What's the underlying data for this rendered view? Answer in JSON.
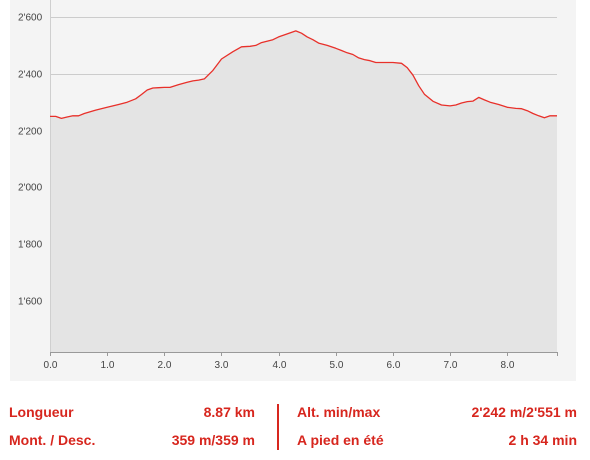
{
  "colors": {
    "line": "#e8302a",
    "fill": "#e4e4e4",
    "panel": "#f4f4f4",
    "grid": "#cccccc",
    "text_red": "#d7261e",
    "axis_text": "#444444"
  },
  "chart_data": {
    "type": "area",
    "xlabel": "",
    "ylabel": "",
    "xlim": [
      0,
      8.87
    ],
    "ylim": [
      1420,
      2660
    ],
    "x_ticks": [
      "0.0",
      "1.0",
      "2.0",
      "3.0",
      "4.0",
      "5.0",
      "6.0",
      "7.0",
      "8.0"
    ],
    "y_ticks": [
      "1'600",
      "1'800",
      "2'000",
      "2'200",
      "2'400",
      "2'600"
    ],
    "grid": true,
    "series": [
      {
        "points": [
          [
            0.0,
            2250
          ],
          [
            0.1,
            2250
          ],
          [
            0.2,
            2243
          ],
          [
            0.3,
            2248
          ],
          [
            0.4,
            2252
          ],
          [
            0.5,
            2252
          ],
          [
            0.6,
            2260
          ],
          [
            0.8,
            2272
          ],
          [
            1.0,
            2282
          ],
          [
            1.2,
            2292
          ],
          [
            1.35,
            2300
          ],
          [
            1.5,
            2312
          ],
          [
            1.6,
            2327
          ],
          [
            1.7,
            2343
          ],
          [
            1.8,
            2350
          ],
          [
            1.9,
            2351
          ],
          [
            2.0,
            2352
          ],
          [
            2.1,
            2352
          ],
          [
            2.25,
            2362
          ],
          [
            2.4,
            2370
          ],
          [
            2.5,
            2375
          ],
          [
            2.6,
            2378
          ],
          [
            2.7,
            2382
          ],
          [
            2.85,
            2412
          ],
          [
            3.0,
            2452
          ],
          [
            3.2,
            2478
          ],
          [
            3.35,
            2495
          ],
          [
            3.5,
            2497
          ],
          [
            3.6,
            2500
          ],
          [
            3.7,
            2510
          ],
          [
            3.9,
            2520
          ],
          [
            4.0,
            2530
          ],
          [
            4.1,
            2537
          ],
          [
            4.2,
            2544
          ],
          [
            4.3,
            2551
          ],
          [
            4.4,
            2543
          ],
          [
            4.5,
            2530
          ],
          [
            4.6,
            2520
          ],
          [
            4.7,
            2508
          ],
          [
            4.85,
            2500
          ],
          [
            5.0,
            2490
          ],
          [
            5.1,
            2482
          ],
          [
            5.2,
            2474
          ],
          [
            5.3,
            2468
          ],
          [
            5.4,
            2456
          ],
          [
            5.5,
            2450
          ],
          [
            5.6,
            2446
          ],
          [
            5.7,
            2440
          ],
          [
            5.85,
            2440
          ],
          [
            6.0,
            2440
          ],
          [
            6.15,
            2437
          ],
          [
            6.25,
            2422
          ],
          [
            6.35,
            2395
          ],
          [
            6.45,
            2358
          ],
          [
            6.55,
            2328
          ],
          [
            6.7,
            2303
          ],
          [
            6.85,
            2290
          ],
          [
            7.0,
            2287
          ],
          [
            7.1,
            2290
          ],
          [
            7.2,
            2297
          ],
          [
            7.3,
            2302
          ],
          [
            7.4,
            2304
          ],
          [
            7.5,
            2317
          ],
          [
            7.6,
            2308
          ],
          [
            7.7,
            2300
          ],
          [
            7.85,
            2292
          ],
          [
            8.0,
            2282
          ],
          [
            8.15,
            2278
          ],
          [
            8.25,
            2277
          ],
          [
            8.35,
            2270
          ],
          [
            8.45,
            2260
          ],
          [
            8.55,
            2252
          ],
          [
            8.65,
            2245
          ],
          [
            8.75,
            2252
          ],
          [
            8.87,
            2252
          ]
        ]
      }
    ]
  },
  "stats": {
    "length_label": "Longueur",
    "length_value": "8.87 km",
    "updown_label": "Mont. / Desc.",
    "updown_value": "359 m/359 m",
    "altitude_label": "Alt. min/max",
    "altitude_value": "2'242 m/2'551 m",
    "mode_label": "A pied en été",
    "mode_value": "2 h 34 min"
  }
}
